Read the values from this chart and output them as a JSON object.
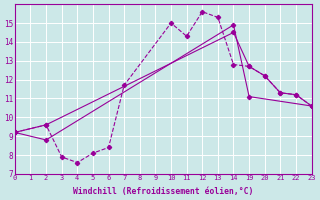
{
  "xlabel": "Windchill (Refroidissement éolien,°C)",
  "bg_color": "#cce8e8",
  "line_color": "#990099",
  "grid_color": "#ffffff",
  "xlim": [
    -0.5,
    23.5
  ],
  "ylim": [
    7,
    16
  ],
  "xticks": [
    0,
    1,
    2,
    3,
    4,
    5,
    6,
    7,
    8,
    9,
    10,
    11,
    12,
    13,
    14,
    19,
    20,
    21,
    22,
    23
  ],
  "yticks": [
    7,
    8,
    9,
    10,
    11,
    12,
    13,
    14,
    15
  ],
  "line1_x": [
    0,
    2,
    3,
    4,
    5,
    6,
    7,
    10,
    11,
    12,
    13,
    14,
    19,
    20,
    21,
    22,
    23
  ],
  "line1_y": [
    9.2,
    9.6,
    7.9,
    7.6,
    8.1,
    8.4,
    11.7,
    15.0,
    14.3,
    15.6,
    15.3,
    12.8,
    12.7,
    12.2,
    11.3,
    11.2,
    10.6
  ],
  "line2_x": [
    0,
    2,
    14,
    19,
    20,
    21,
    22,
    23
  ],
  "line2_y": [
    9.2,
    9.6,
    14.5,
    12.7,
    12.2,
    11.3,
    11.2,
    10.6
  ],
  "line3_x": [
    0,
    2,
    14,
    19,
    23
  ],
  "line3_y": [
    9.2,
    8.8,
    14.9,
    11.1,
    10.6
  ]
}
